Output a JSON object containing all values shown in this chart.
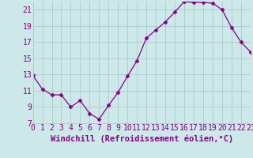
{
  "x": [
    0,
    1,
    2,
    3,
    4,
    5,
    6,
    7,
    8,
    9,
    10,
    11,
    12,
    13,
    14,
    15,
    16,
    17,
    18,
    19,
    20,
    21,
    22,
    23
  ],
  "y": [
    12.9,
    11.2,
    10.5,
    10.5,
    9.0,
    9.8,
    8.2,
    7.5,
    9.2,
    10.8,
    12.8,
    14.7,
    17.5,
    18.5,
    19.5,
    20.7,
    22.0,
    21.9,
    21.9,
    21.8,
    21.0,
    18.8,
    17.0,
    15.8
  ],
  "line_color": "#880088",
  "marker": "D",
  "marker_size": 2.5,
  "bg_color": "#cce8e8",
  "grid_color": "#aacccc",
  "text_color": "#880088",
  "xlabel": "Windchill (Refroidissement éolien,°C)",
  "xlim": [
    0,
    23
  ],
  "ylim": [
    7,
    22
  ],
  "yticks": [
    7,
    9,
    11,
    13,
    15,
    17,
    19,
    21
  ],
  "xticks": [
    0,
    1,
    2,
    3,
    4,
    5,
    6,
    7,
    8,
    9,
    10,
    11,
    12,
    13,
    14,
    15,
    16,
    17,
    18,
    19,
    20,
    21,
    22,
    23
  ],
  "xlabel_fontsize": 7.5,
  "tick_fontsize": 7.0
}
